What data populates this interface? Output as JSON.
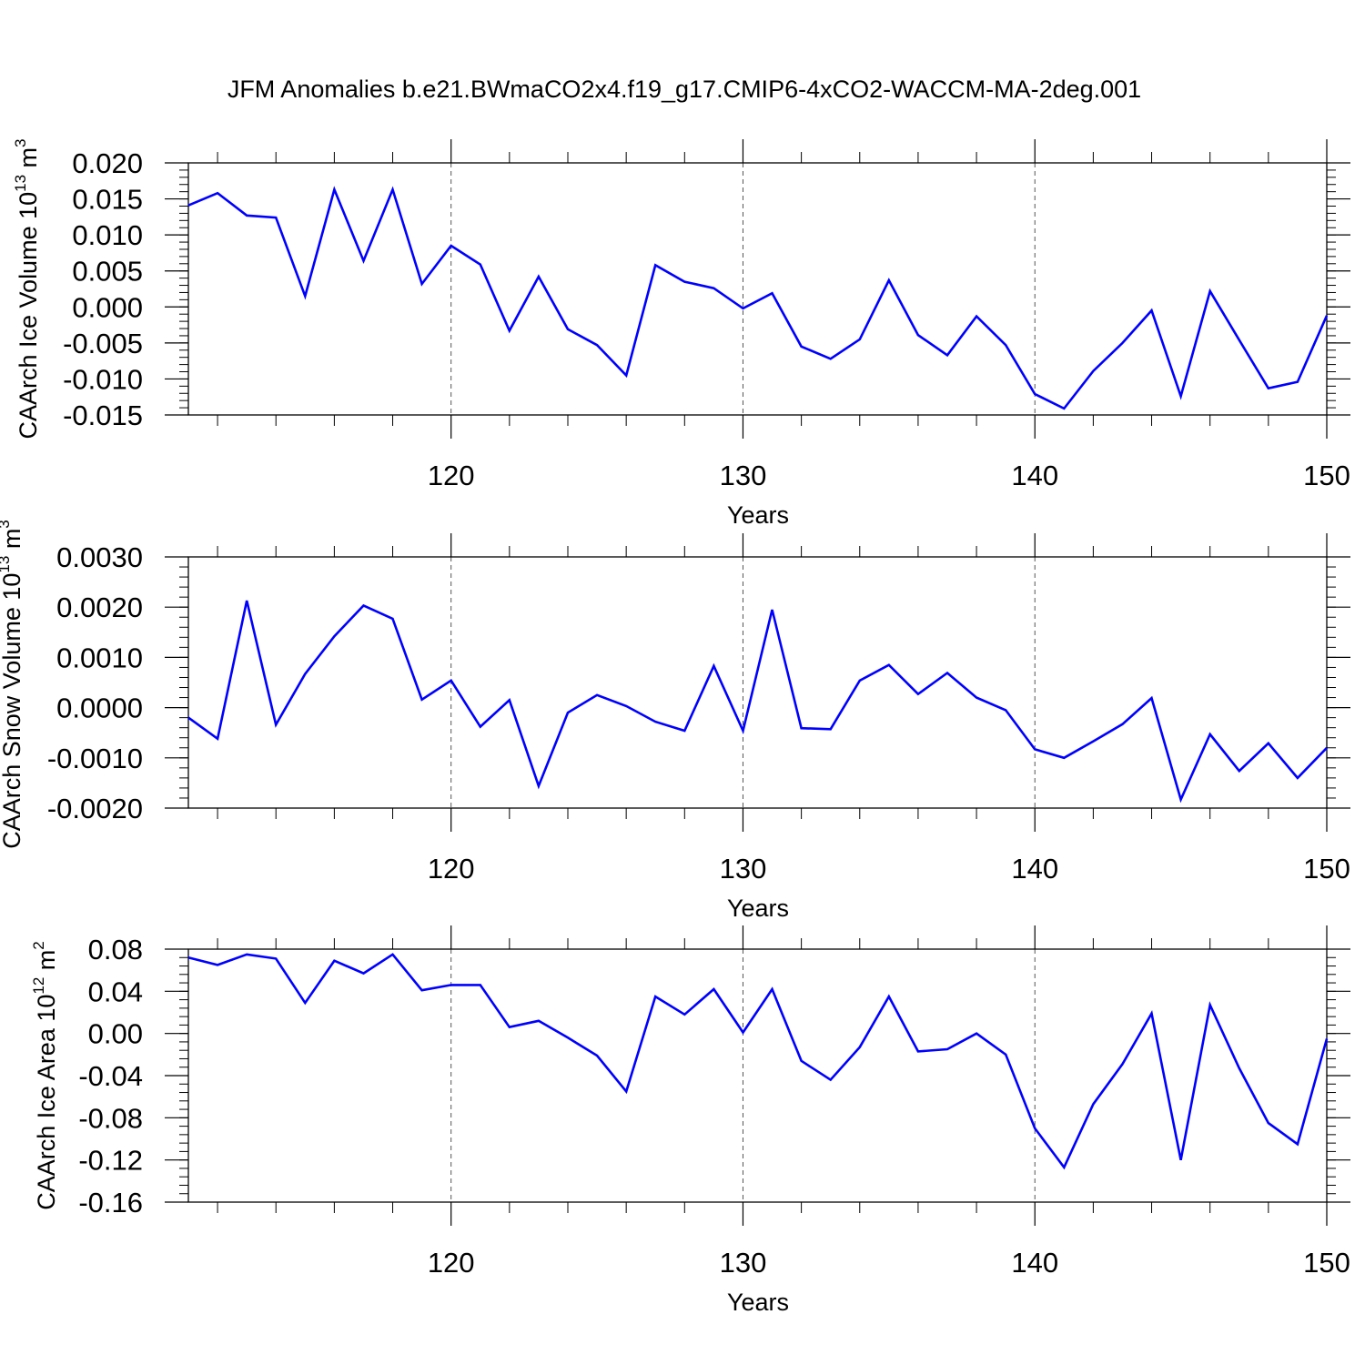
{
  "title": "JFM Anomalies b.e21.BWmaCO2x4.f19_g17.CMIP6-4xCO2-WACCM-MA-2deg.001",
  "chart_data": [
    {
      "type": "line",
      "series_color": "#0000ff",
      "x_start": 111,
      "x_step": 1,
      "xlim": [
        111,
        150
      ],
      "x_ticks": [
        120,
        130,
        140,
        150
      ],
      "x_tick_labels": [
        "120",
        "130",
        "140",
        "150"
      ],
      "xlabel": "Years",
      "ylabel": "CAArch Ice Volume 10",
      "ylabel_exp": "13",
      "ylabel_unit": " m",
      "ylabel_unit_exp": "3",
      "ylim": [
        -0.015,
        0.02
      ],
      "y_ticks": [
        0.02,
        0.015,
        0.01,
        0.005,
        0.0,
        -0.005,
        -0.01,
        -0.015
      ],
      "y_tick_labels": [
        "0.020",
        "0.015",
        "0.010",
        "0.005",
        "0.000",
        "-0.005",
        "-0.010",
        "-0.015"
      ],
      "values": [
        0.0141,
        0.0158,
        0.0127,
        0.0124,
        0.0015,
        0.0163,
        0.0064,
        0.0163,
        0.0032,
        0.0085,
        0.0059,
        -0.0033,
        0.0042,
        -0.0031,
        -0.0053,
        -0.0095,
        0.0058,
        0.0035,
        0.0026,
        -0.0002,
        0.0019,
        -0.0055,
        -0.0072,
        -0.0045,
        0.0037,
        -0.0039,
        -0.0067,
        -0.0013,
        -0.0053,
        -0.0121,
        -0.0141,
        -0.0089,
        -0.005,
        -0.0005,
        -0.0124,
        0.0022,
        -0.0046,
        -0.0113,
        -0.0104,
        -0.0012
      ]
    },
    {
      "type": "line",
      "series_color": "#0000ff",
      "x_start": 111,
      "x_step": 1,
      "xlim": [
        111,
        150
      ],
      "x_ticks": [
        120,
        130,
        140,
        150
      ],
      "x_tick_labels": [
        "120",
        "130",
        "140",
        "150"
      ],
      "xlabel": "Years",
      "ylabel": "CAArch Snow Volume 10",
      "ylabel_exp": "13",
      "ylabel_unit": " m",
      "ylabel_unit_exp": "3",
      "ylim": [
        -0.002,
        0.003
      ],
      "y_ticks": [
        0.003,
        0.002,
        0.001,
        0.0,
        -0.001,
        -0.002
      ],
      "y_tick_labels": [
        "0.0030",
        "0.0020",
        "0.0010",
        "0.0000",
        "-0.0010",
        "-0.0020"
      ],
      "values": [
        -0.0002,
        -0.00062,
        0.00213,
        -0.00034,
        0.00067,
        0.00142,
        0.00203,
        0.00177,
        0.00016,
        0.00054,
        -0.00038,
        0.00015,
        -0.00156,
        -0.0001,
        0.00025,
        3e-05,
        -0.00028,
        -0.00046,
        0.00083,
        -0.00046,
        0.00195,
        -0.00041,
        -0.00043,
        0.00054,
        0.00085,
        0.00027,
        0.00069,
        0.0002,
        -5e-05,
        -0.00083,
        -0.001,
        -0.00067,
        -0.00033,
        0.00019,
        -0.00183,
        -0.00053,
        -0.00126,
        -0.00071,
        -0.0014,
        -0.0008
      ]
    },
    {
      "type": "line",
      "series_color": "#0000ff",
      "x_start": 111,
      "x_step": 1,
      "xlim": [
        111,
        150
      ],
      "x_ticks": [
        120,
        130,
        140,
        150
      ],
      "x_tick_labels": [
        "120",
        "130",
        "140",
        "150"
      ],
      "xlabel": "Years",
      "ylabel": "CAArch Ice Area 10",
      "ylabel_exp": "12",
      "ylabel_unit": " m",
      "ylabel_unit_exp": "2",
      "ylim": [
        -0.16,
        0.08
      ],
      "y_ticks": [
        0.08,
        0.04,
        0.0,
        -0.04,
        -0.08,
        -0.12,
        -0.16
      ],
      "y_tick_labels": [
        "0.08",
        "0.04",
        "0.00",
        "-0.04",
        "-0.08",
        "-0.12",
        "-0.16"
      ],
      "values": [
        0.072,
        0.065,
        0.075,
        0.071,
        0.029,
        0.069,
        0.057,
        0.075,
        0.041,
        0.046,
        0.046,
        0.006,
        0.012,
        -0.004,
        -0.021,
        -0.055,
        0.035,
        0.018,
        0.042,
        0.001,
        0.042,
        -0.026,
        -0.044,
        -0.013,
        0.035,
        -0.017,
        -0.015,
        0.0,
        -0.02,
        -0.09,
        -0.127,
        -0.067,
        -0.029,
        0.019,
        -0.12,
        0.027,
        -0.033,
        -0.085,
        -0.105,
        -0.005
      ]
    }
  ]
}
